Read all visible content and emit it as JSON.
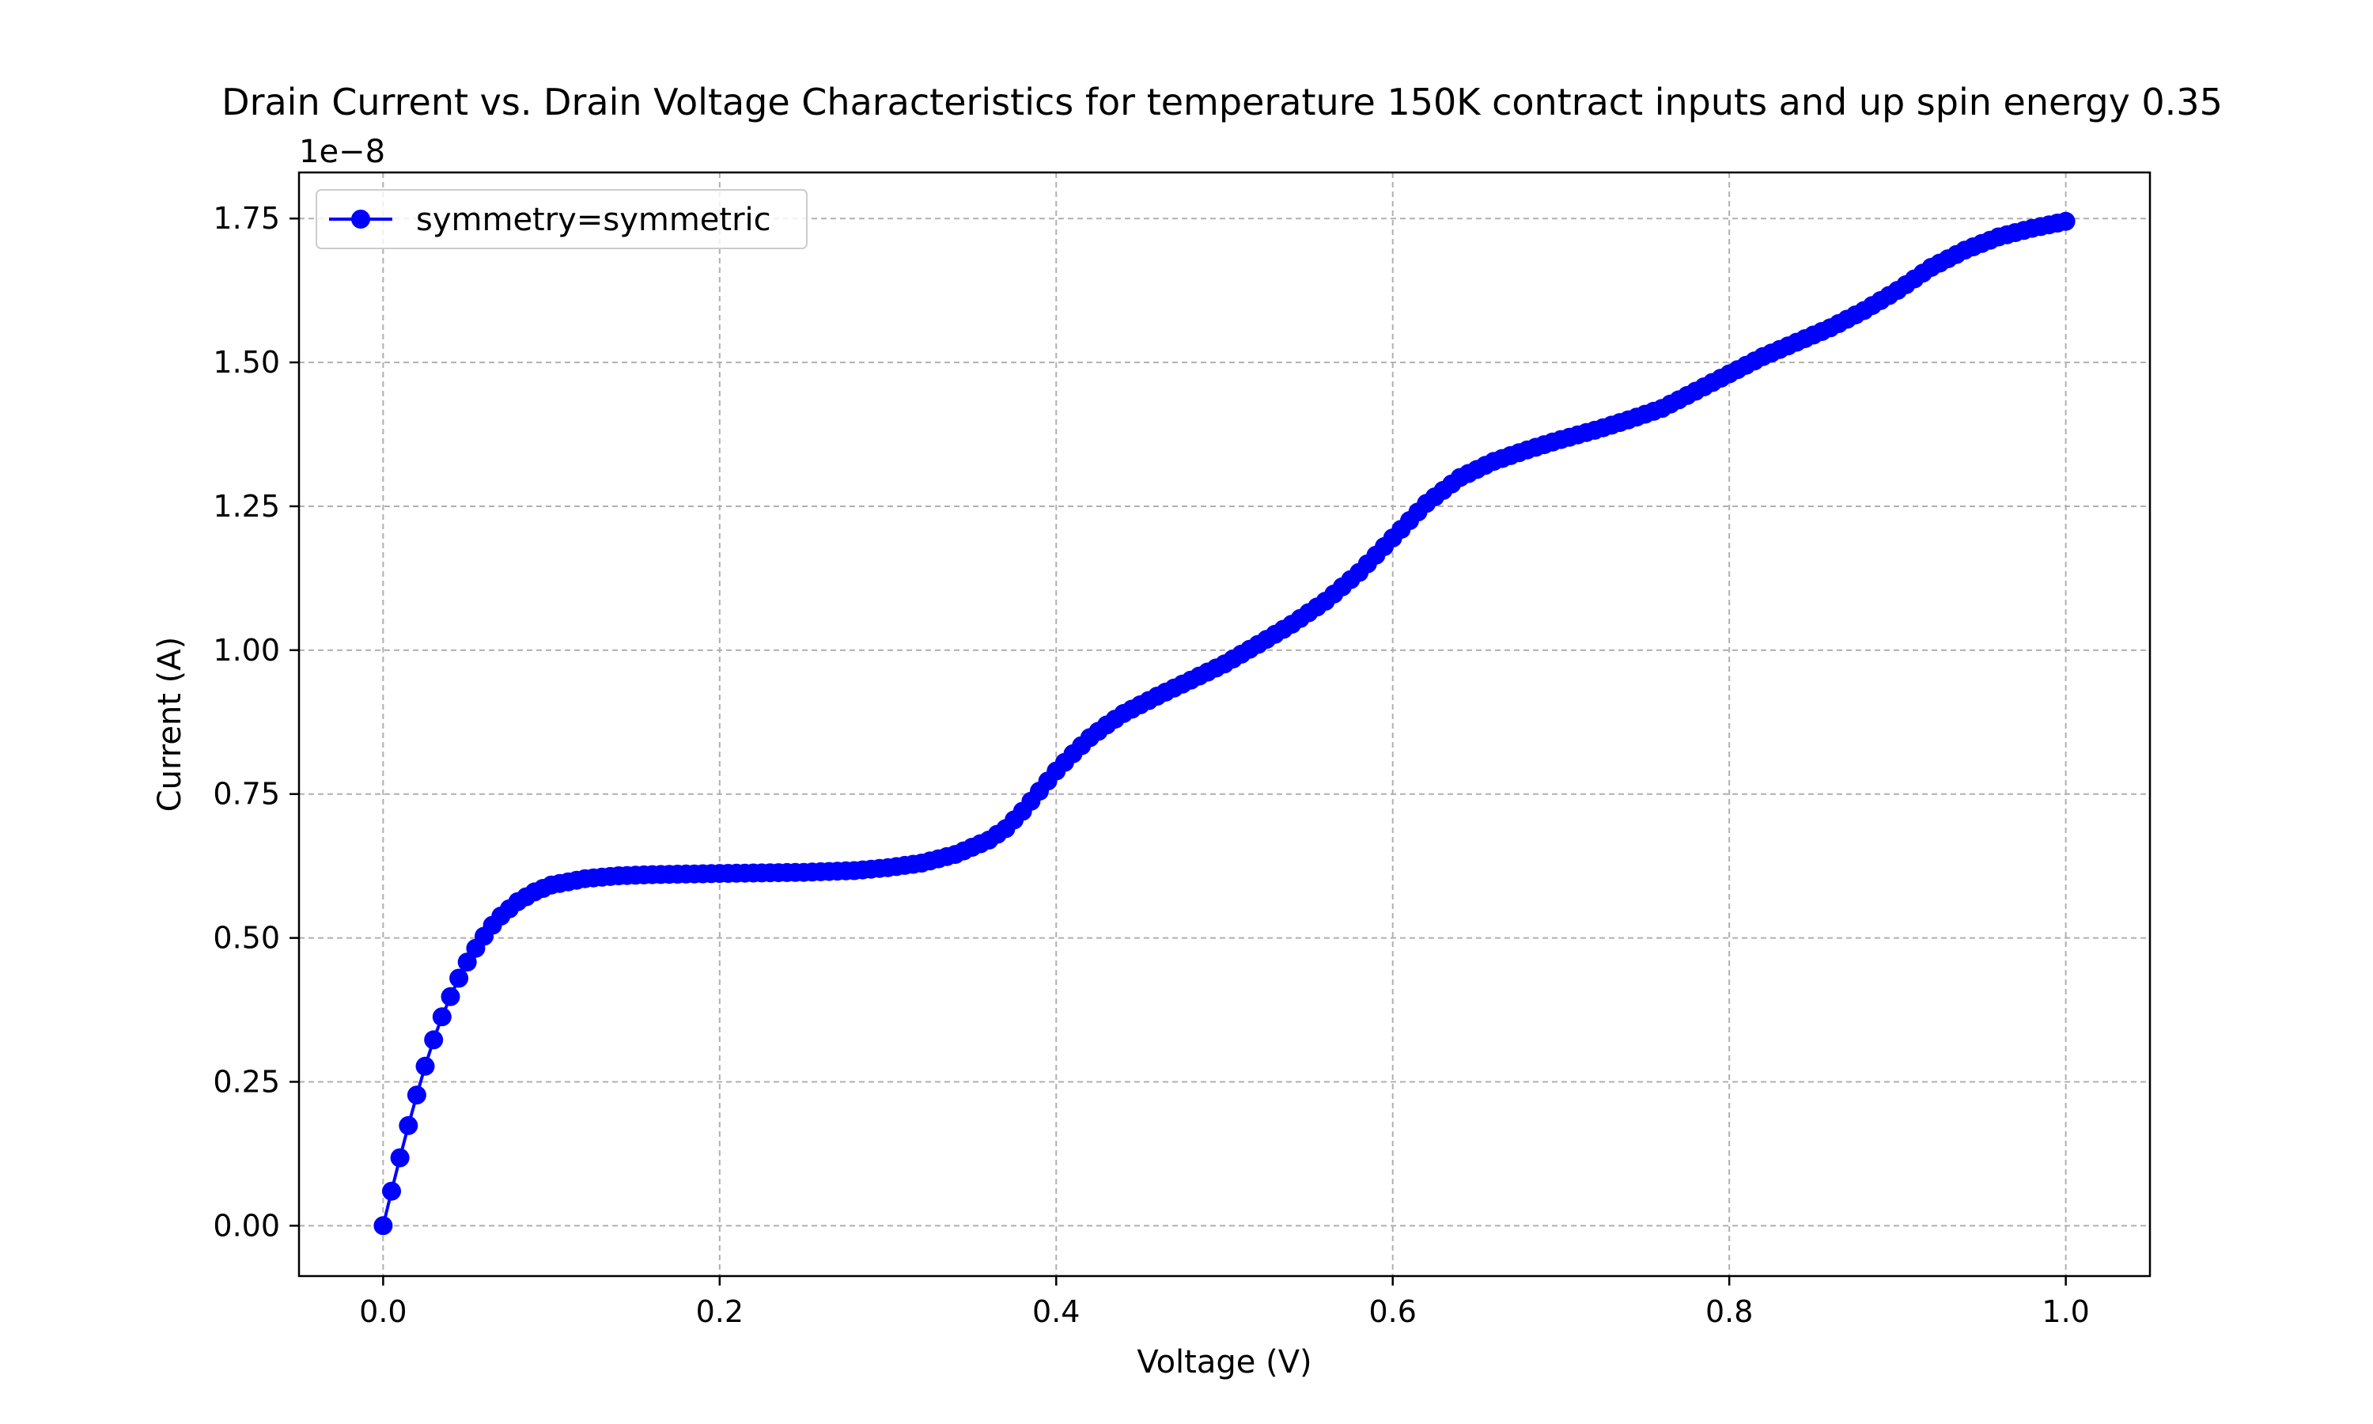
{
  "chart_data": {
    "type": "line",
    "title": "Drain Current vs. Drain Voltage Characteristics for temperature 150K contract inputs and up spin energy 0.35",
    "xlabel": "Voltage (V)",
    "ylabel": "Current (A)",
    "y_offset_label": "1e−8",
    "xlim": [
      -0.05,
      1.05
    ],
    "ylim": [
      -0.0875,
      1.83
    ],
    "y_scale_note": "values shown in units of 1e-8 A",
    "x_ticks": [
      "0.0",
      "0.2",
      "0.4",
      "0.6",
      "0.8",
      "1.0"
    ],
    "y_ticks": [
      "0.00",
      "0.25",
      "0.50",
      "0.75",
      "1.00",
      "1.25",
      "1.50",
      "1.75"
    ],
    "grid": true,
    "legend_position": "upper-left",
    "series": [
      {
        "name": "symmetry=symmetric",
        "color": "#0000ff",
        "marker": "circle",
        "points": [
          [
            0.0,
            0.0
          ],
          [
            0.005,
            0.06
          ],
          [
            0.01,
            0.118
          ],
          [
            0.015,
            0.174
          ],
          [
            0.02,
            0.227
          ],
          [
            0.025,
            0.277
          ],
          [
            0.03,
            0.323
          ],
          [
            0.035,
            0.363
          ],
          [
            0.04,
            0.398
          ],
          [
            0.045,
            0.43
          ],
          [
            0.05,
            0.458
          ],
          [
            0.055,
            0.482
          ],
          [
            0.06,
            0.503
          ],
          [
            0.065,
            0.522
          ],
          [
            0.07,
            0.538
          ],
          [
            0.08,
            0.563
          ],
          [
            0.09,
            0.58
          ],
          [
            0.1,
            0.592
          ],
          [
            0.12,
            0.603
          ],
          [
            0.14,
            0.608
          ],
          [
            0.16,
            0.61
          ],
          [
            0.2,
            0.612
          ],
          [
            0.25,
            0.614
          ],
          [
            0.28,
            0.617
          ],
          [
            0.3,
            0.622
          ],
          [
            0.32,
            0.63
          ],
          [
            0.34,
            0.645
          ],
          [
            0.36,
            0.67
          ],
          [
            0.37,
            0.69
          ],
          [
            0.38,
            0.72
          ],
          [
            0.39,
            0.755
          ],
          [
            0.4,
            0.79
          ],
          [
            0.41,
            0.82
          ],
          [
            0.42,
            0.848
          ],
          [
            0.43,
            0.87
          ],
          [
            0.44,
            0.89
          ],
          [
            0.46,
            0.92
          ],
          [
            0.48,
            0.948
          ],
          [
            0.5,
            0.976
          ],
          [
            0.52,
            1.01
          ],
          [
            0.54,
            1.045
          ],
          [
            0.56,
            1.085
          ],
          [
            0.58,
            1.135
          ],
          [
            0.6,
            1.195
          ],
          [
            0.62,
            1.255
          ],
          [
            0.64,
            1.3
          ],
          [
            0.66,
            1.328
          ],
          [
            0.68,
            1.348
          ],
          [
            0.7,
            1.366
          ],
          [
            0.72,
            1.382
          ],
          [
            0.74,
            1.4
          ],
          [
            0.76,
            1.42
          ],
          [
            0.78,
            1.45
          ],
          [
            0.8,
            1.48
          ],
          [
            0.82,
            1.51
          ],
          [
            0.84,
            1.535
          ],
          [
            0.86,
            1.56
          ],
          [
            0.88,
            1.59
          ],
          [
            0.9,
            1.625
          ],
          [
            0.92,
            1.665
          ],
          [
            0.94,
            1.695
          ],
          [
            0.96,
            1.718
          ],
          [
            0.98,
            1.733
          ],
          [
            1.0,
            1.745
          ]
        ]
      }
    ]
  }
}
